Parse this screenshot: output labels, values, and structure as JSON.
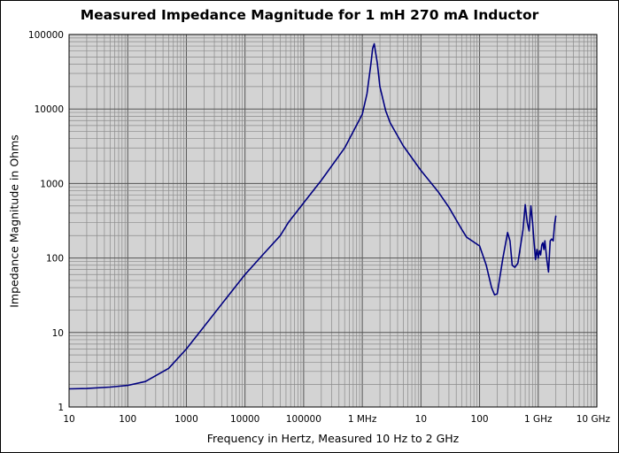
{
  "chart_data": {
    "type": "line",
    "title": "Measured Impedance Magnitude for 1 mH 270 mA Inductor",
    "xlabel": "Frequency in Hertz, Measured 10 Hz to 2 GHz",
    "ylabel": "Impedance Magnitude in Ohms",
    "x_scale": "log",
    "y_scale": "log",
    "xlim": [
      10,
      10000000000
    ],
    "ylim": [
      1,
      100000
    ],
    "grid": true,
    "background": "#d3d3d3",
    "line_color": "#000080",
    "x_tick_labels": [
      "10",
      "100",
      "1000",
      "10000",
      "100000",
      "1 MHz",
      "10",
      "100",
      "1 GHz",
      "10 GHz"
    ],
    "y_tick_labels": [
      "1",
      "10",
      "100",
      "1000",
      "10000",
      "100000"
    ],
    "series": [
      {
        "x": [
          10,
          20,
          50,
          100,
          200,
          500,
          1000,
          2000,
          5000,
          10000,
          20000,
          40000,
          55000,
          100000,
          200000,
          500000,
          1000000,
          1200000,
          1400000,
          1500000,
          1600000,
          1800000,
          2000000,
          2500000,
          3000000,
          5000000,
          10000000,
          20000000,
          30000000,
          50000000,
          60000000,
          100000000,
          130000000,
          160000000,
          180000000,
          200000000,
          250000000,
          300000000,
          330000000,
          360000000,
          400000000,
          450000000,
          550000000,
          600000000,
          650000000,
          700000000,
          750000000,
          800000000,
          850000000,
          900000000,
          950000000,
          1000000000,
          1050000000,
          1100000000,
          1150000000,
          1200000000,
          1250000000,
          1300000000,
          1400000000,
          1500000000,
          1600000000,
          1700000000,
          1800000000,
          1900000000,
          2000000000
        ],
        "y": [
          1.75,
          1.77,
          1.85,
          1.95,
          2.2,
          3.3,
          6,
          12,
          30,
          60,
          110,
          200,
          300,
          550,
          1100,
          3000,
          8500,
          16000,
          40000,
          65000,
          75000,
          42000,
          20000,
          9500,
          6500,
          3200,
          1500,
          760,
          480,
          240,
          190,
          145,
          80,
          40,
          32,
          33,
          100,
          220,
          170,
          80,
          75,
          85,
          240,
          520,
          300,
          230,
          500,
          300,
          160,
          95,
          130,
          100,
          125,
          110,
          150,
          160,
          130,
          170,
          95,
          65,
          170,
          180,
          170,
          280,
          370
        ]
      }
    ]
  }
}
